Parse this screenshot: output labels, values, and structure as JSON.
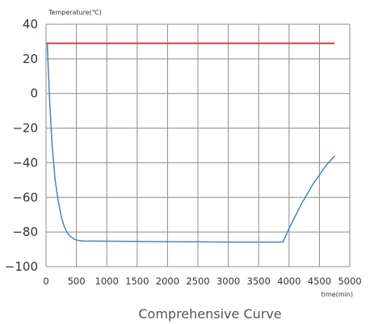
{
  "chart_data": {
    "type": "line",
    "title": "Comprehensive Curve",
    "ylabel": "Temperature(℃)",
    "xlabel": "time(min)",
    "xlim": [
      0,
      5000
    ],
    "ylim": [
      -100,
      40
    ],
    "grid": true,
    "x_ticks": [
      "0",
      "500",
      "1000",
      "1500",
      "2000",
      "2500",
      "3000",
      "3500",
      "4000",
      "4500",
      "5000"
    ],
    "y_ticks": [
      "40",
      "20",
      "0",
      "−20",
      "−40",
      "−60",
      "−80",
      "−100"
    ],
    "series": [
      {
        "color": "#c0504d",
        "x": [
          0,
          500,
          1000,
          1500,
          2000,
          2500,
          3000,
          3500,
          4000,
          4500,
          4750
        ],
        "y": [
          29,
          29,
          29,
          29,
          29,
          29,
          29,
          29,
          29,
          29,
          29
        ]
      },
      {
        "color": "#4f81bd",
        "x": [
          20,
          60,
          100,
          150,
          200,
          250,
          300,
          350,
          400,
          450,
          500,
          550,
          600,
          1000,
          2000,
          3000,
          3900,
          4000,
          4200,
          4400,
          4600,
          4750
        ],
        "y": [
          29,
          -5,
          -30,
          -50,
          -62,
          -71,
          -77,
          -80.5,
          -82.5,
          -83.8,
          -84.6,
          -85,
          -85.2,
          -85.3,
          -85.6,
          -85.8,
          -85.8,
          -78,
          -64,
          -52,
          -42,
          -36
        ]
      }
    ]
  }
}
